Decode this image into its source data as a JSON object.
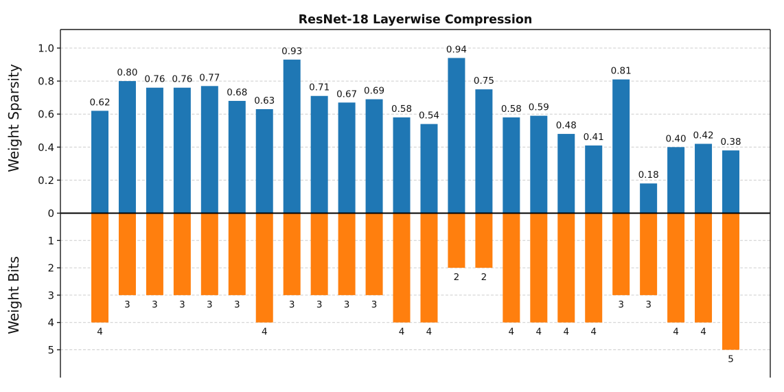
{
  "colors": {
    "sparsity": "#1f77b4",
    "bits": "#ff7f0e",
    "grid": "#cccccc",
    "spine": "#1a1a1a",
    "zero_line": "#000000",
    "text": "#111111",
    "background": "#ffffff"
  },
  "chart_data": {
    "type": "bar",
    "subtype": "diverging-dual-axis",
    "title": "ResNet-18 Layerwise Compression",
    "n_bars": 24,
    "x_tick_labels": [],
    "grid": true,
    "legend": false,
    "top_axis": {
      "label": "Weight Sparsity",
      "range": [
        0,
        1.11
      ],
      "ticks": [
        {
          "value": 1.0,
          "label": "1.0"
        },
        {
          "value": 0.8,
          "label": "0.8"
        },
        {
          "value": 0.6,
          "label": "0.6"
        },
        {
          "value": 0.4,
          "label": "0.4"
        },
        {
          "value": 0.2,
          "label": "0.2"
        },
        {
          "value": 0.0,
          "label": "0"
        }
      ],
      "grid_at": [
        1.0,
        0.8,
        0.6,
        0.4,
        0.2
      ]
    },
    "bottom_axis": {
      "label": "Weight Bits",
      "range": [
        0,
        6
      ],
      "inverted": true,
      "ticks": [
        {
          "value": 1,
          "label": "1"
        },
        {
          "value": 2,
          "label": "2"
        },
        {
          "value": 3,
          "label": "3"
        },
        {
          "value": 4,
          "label": "4"
        },
        {
          "value": 5,
          "label": "5"
        }
      ],
      "grid_at": [
        1,
        2,
        3,
        4,
        5
      ]
    },
    "series": [
      {
        "name": "Weight Sparsity",
        "color_key": "sparsity",
        "direction": "up",
        "values": [
          0.62,
          0.8,
          0.76,
          0.76,
          0.77,
          0.68,
          0.63,
          0.93,
          0.71,
          0.67,
          0.69,
          0.58,
          0.54,
          0.94,
          0.75,
          0.58,
          0.59,
          0.48,
          0.41,
          0.81,
          0.18,
          0.4,
          0.42,
          0.38
        ],
        "labels": [
          "0.62",
          "0.80",
          "0.76",
          "0.76",
          "0.77",
          "0.68",
          "0.63",
          "0.93",
          "0.71",
          "0.67",
          "0.69",
          "0.58",
          "0.54",
          "0.94",
          "0.75",
          "0.58",
          "0.59",
          "0.48",
          "0.41",
          "0.81",
          "0.18",
          "0.40",
          "0.42",
          "0.38"
        ]
      },
      {
        "name": "Weight Bits",
        "color_key": "bits",
        "direction": "down",
        "values": [
          4,
          3,
          3,
          3,
          3,
          3,
          4,
          3,
          3,
          3,
          3,
          4,
          4,
          2,
          2,
          4,
          4,
          4,
          4,
          3,
          3,
          4,
          4,
          5
        ],
        "labels": [
          "4",
          "3",
          "3",
          "3",
          "3",
          "3",
          "4",
          "3",
          "3",
          "3",
          "3",
          "4",
          "4",
          "2",
          "2",
          "4",
          "4",
          "4",
          "4",
          "3",
          "3",
          "4",
          "4",
          "5"
        ]
      }
    ]
  }
}
